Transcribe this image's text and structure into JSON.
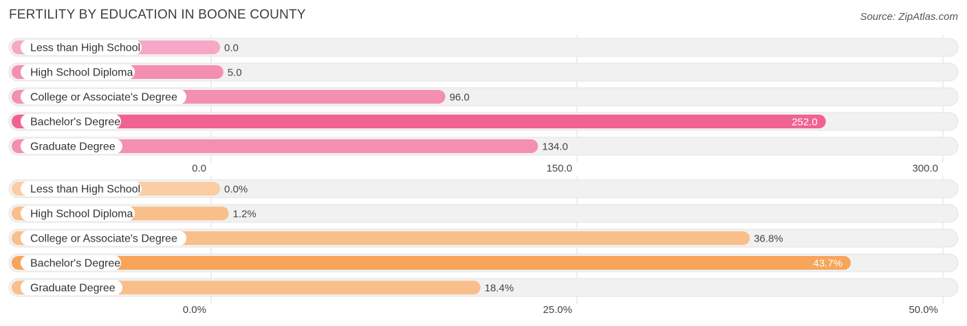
{
  "title": "FERTILITY BY EDUCATION IN BOONE COUNTY",
  "source": "Source: ZipAtlas.com",
  "chart_data": [
    {
      "type": "bar",
      "orientation": "horizontal",
      "categories": [
        "Less than High School",
        "High School Diploma",
        "College or Associate's Degree",
        "Bachelor's Degree",
        "Graduate Degree"
      ],
      "values": [
        0.0,
        5.0,
        96.0,
        252.0,
        134.0
      ],
      "value_labels": [
        "0.0",
        "5.0",
        "96.0",
        "252.0",
        "134.0"
      ],
      "xlim": [
        0,
        300
      ],
      "ticks": [
        0,
        150,
        300
      ],
      "tick_labels": [
        "0.0",
        "150.0",
        "300.0"
      ],
      "grid": true,
      "colors": {
        "normal": "#f48fb1",
        "light": "#f7a8c6",
        "highlight": "#f06292"
      },
      "highlight_index": 3
    },
    {
      "type": "bar",
      "orientation": "horizontal",
      "categories": [
        "Less than High School",
        "High School Diploma",
        "College or Associate's Degree",
        "Bachelor's Degree",
        "Graduate Degree"
      ],
      "values": [
        0.0,
        1.2,
        36.8,
        43.7,
        18.4
      ],
      "value_labels": [
        "0.0%",
        "1.2%",
        "36.8%",
        "43.7%",
        "18.4%"
      ],
      "xlim": [
        0,
        50
      ],
      "ticks": [
        0,
        25,
        50
      ],
      "tick_labels": [
        "0.0%",
        "25.0%",
        "50.0%"
      ],
      "grid": true,
      "colors": {
        "normal": "#f9bf8a",
        "light": "#fbcda3",
        "highlight": "#f7a55a"
      },
      "highlight_index": 3
    }
  ]
}
